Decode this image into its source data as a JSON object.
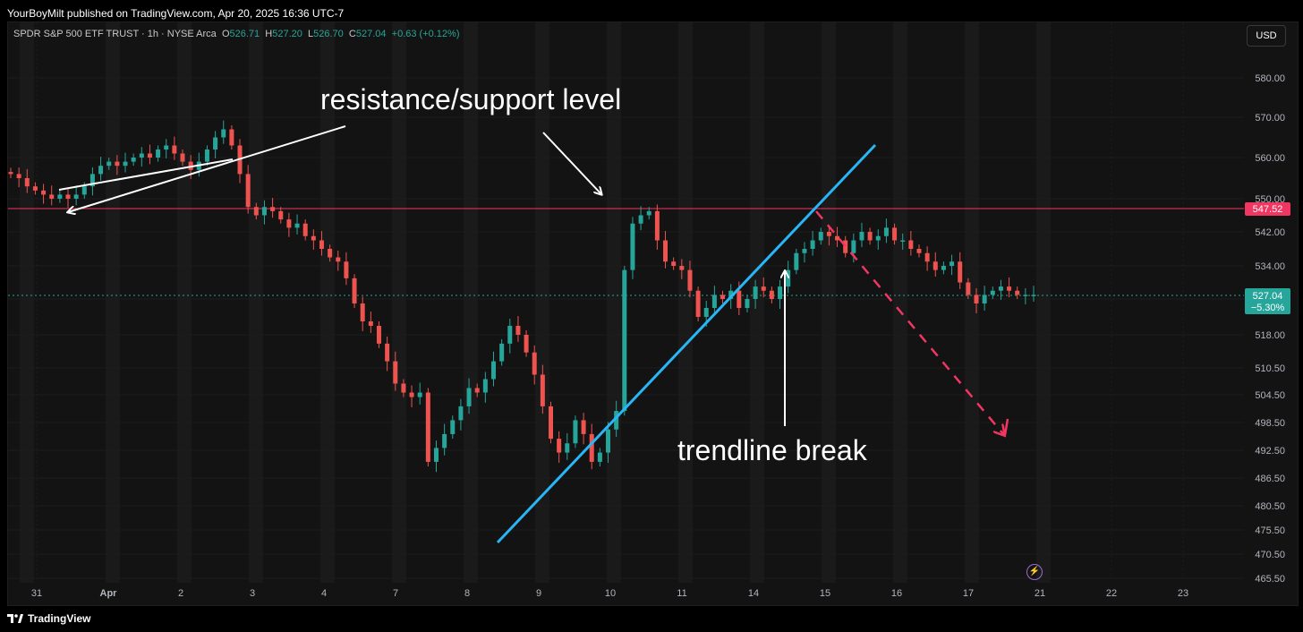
{
  "publish_header": "YourBoyMilt published on TradingView.com, Apr 20, 2025 16:36 UTC-7",
  "footer_brand": "TradingView",
  "currency_button": "USD",
  "legend": {
    "symbol": "SPDR S&P 500 ETF TRUST · 1h · NYSE Arca",
    "open_key": "O",
    "open": "526.71",
    "high_key": "H",
    "high": "527.20",
    "low_key": "L",
    "low": "526.70",
    "close_key": "C",
    "close": "527.04",
    "change": "+0.63 (+0.12%)"
  },
  "colors": {
    "bull": "#26a69a",
    "bear": "#ef5350",
    "resistance_line": "#f23662",
    "trendline": "#29b6f6",
    "last_price": "#26a69a"
  },
  "annotations": {
    "resistance": "resistance/support level",
    "trendline": "trendline break"
  },
  "price_labels": {
    "resistance": "547.52",
    "last": "527.04",
    "last_change": "−5.30%"
  },
  "chart_data": {
    "type": "candlestick",
    "y_ticks": [
      580,
      570,
      560,
      550,
      542,
      534,
      526,
      518,
      510.5,
      504.5,
      498.5,
      492.5,
      486.5,
      480.5,
      475.5,
      470.5,
      465.5
    ],
    "y_tick_labels": [
      "580.00",
      "570.00",
      "560.00",
      "550.00",
      "542.00",
      "534.00",
      "526.00",
      "518.00",
      "510.50",
      "504.50",
      "498.50",
      "492.50",
      "486.50",
      "480.50",
      "475.50",
      "470.50",
      "465.50"
    ],
    "x_tick_labels": [
      "31",
      "Apr",
      "2",
      "3",
      "4",
      "7",
      "8",
      "9",
      "10",
      "11",
      "14",
      "15",
      "16",
      "17",
      "21",
      "22",
      "23"
    ],
    "resistance_level": 547.52,
    "last_price": 527.04,
    "close_path": [
      [
        31,
        556
      ],
      [
        31,
        555
      ],
      [
        31,
        553
      ],
      [
        31,
        552
      ],
      [
        31,
        551
      ],
      [
        31,
        550
      ],
      [
        31,
        551
      ],
      [
        31,
        550
      ],
      [
        "Apr",
        551
      ],
      [
        "Apr",
        553
      ],
      [
        "Apr",
        556
      ],
      [
        "Apr",
        558
      ],
      [
        "Apr",
        559
      ],
      [
        "Apr",
        558
      ],
      [
        "Apr",
        559
      ],
      [
        "Apr",
        560
      ],
      [
        2,
        561
      ],
      [
        2,
        560
      ],
      [
        2,
        562
      ],
      [
        2,
        563
      ],
      [
        2,
        561
      ],
      [
        2,
        559
      ],
      [
        2,
        557
      ],
      [
        2,
        559
      ],
      [
        2,
        562
      ],
      [
        2,
        565
      ],
      [
        2,
        567
      ],
      [
        2,
        563
      ],
      [
        3,
        556
      ],
      [
        3,
        548
      ],
      [
        3,
        546
      ],
      [
        3,
        548
      ],
      [
        3,
        547
      ],
      [
        3,
        545
      ],
      [
        3,
        543
      ],
      [
        3,
        544
      ],
      [
        3,
        541
      ],
      [
        3,
        540
      ],
      [
        4,
        538
      ],
      [
        4,
        536
      ],
      [
        4,
        535
      ],
      [
        4,
        531
      ],
      [
        4,
        525
      ],
      [
        4,
        521
      ],
      [
        4,
        520
      ],
      [
        4,
        516
      ],
      [
        4,
        512
      ],
      [
        4,
        507
      ],
      [
        7,
        505
      ],
      [
        7,
        504
      ],
      [
        7,
        505
      ],
      [
        7,
        490
      ],
      [
        7,
        493
      ],
      [
        7,
        496
      ],
      [
        7,
        499
      ],
      [
        7,
        502
      ],
      [
        8,
        506
      ],
      [
        8,
        505
      ],
      [
        8,
        508
      ],
      [
        8,
        512
      ],
      [
        8,
        516
      ],
      [
        8,
        520
      ],
      [
        8,
        518
      ],
      [
        8,
        514
      ],
      [
        8,
        509
      ],
      [
        8,
        502
      ],
      [
        8,
        495
      ],
      [
        9,
        492
      ],
      [
        9,
        494
      ],
      [
        9,
        499
      ],
      [
        9,
        496
      ],
      [
        9,
        490
      ],
      [
        9,
        492
      ],
      [
        9,
        497
      ],
      [
        9,
        501
      ],
      [
        9,
        533
      ],
      [
        10,
        544
      ],
      [
        10,
        546
      ],
      [
        10,
        547
      ],
      [
        10,
        540
      ],
      [
        10,
        535
      ],
      [
        10,
        534
      ],
      [
        10,
        533
      ],
      [
        10,
        528
      ],
      [
        11,
        522
      ],
      [
        11,
        524
      ],
      [
        11,
        527
      ],
      [
        11,
        526
      ],
      [
        11,
        528
      ],
      [
        11,
        524
      ],
      [
        11,
        526
      ],
      [
        11,
        529
      ],
      [
        11,
        528
      ],
      [
        11,
        526
      ],
      [
        11,
        529
      ],
      [
        11,
        533
      ],
      [
        14,
        537
      ],
      [
        14,
        538
      ],
      [
        14,
        540
      ],
      [
        14,
        542
      ],
      [
        14,
        541
      ],
      [
        14,
        540
      ],
      [
        14,
        537
      ],
      [
        14,
        540
      ],
      [
        15,
        542
      ],
      [
        15,
        540
      ],
      [
        15,
        541
      ],
      [
        15,
        543
      ],
      [
        15,
        540
      ],
      [
        15,
        540
      ],
      [
        15,
        538
      ],
      [
        15,
        537
      ],
      [
        16,
        535
      ],
      [
        16,
        533
      ],
      [
        16,
        534
      ],
      [
        16,
        535
      ],
      [
        16,
        530
      ],
      [
        16,
        527
      ],
      [
        17,
        525
      ],
      [
        17,
        527
      ],
      [
        17,
        528
      ],
      [
        17,
        529
      ],
      [
        17,
        528
      ],
      [
        17,
        527
      ],
      [
        17,
        527
      ],
      [
        17,
        527
      ]
    ]
  }
}
